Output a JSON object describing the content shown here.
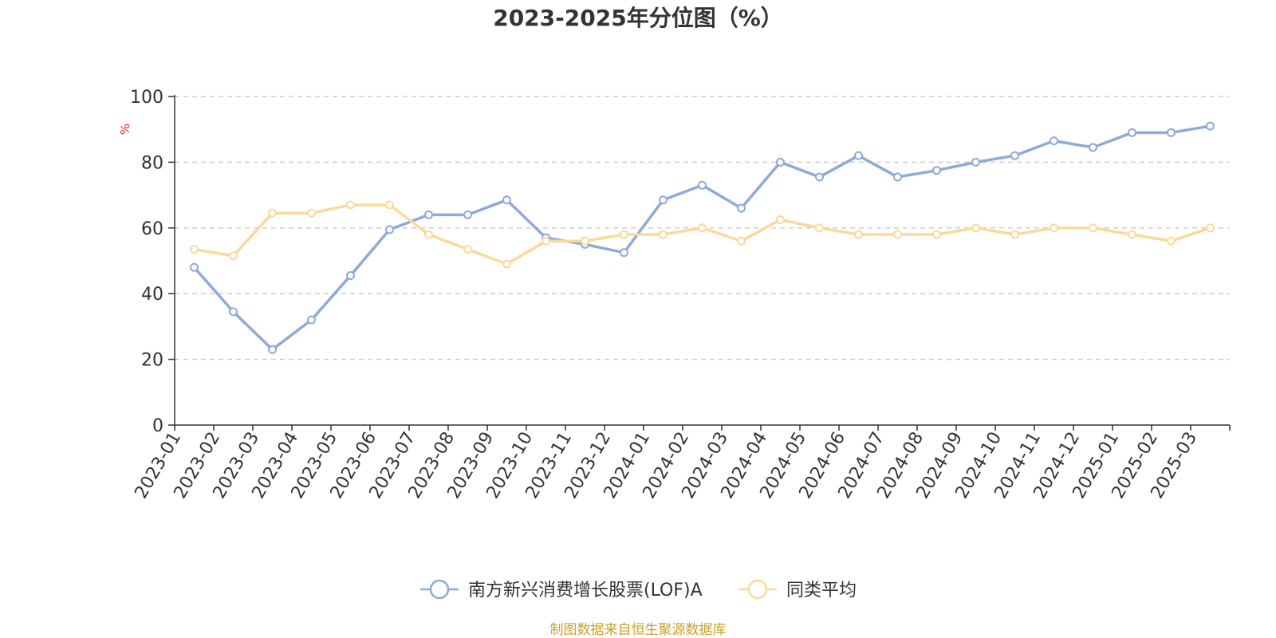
{
  "chart_data": {
    "type": "line",
    "title": "2023-2025年分位图（%）",
    "ylabel": "%",
    "xlabel": "",
    "ylim": [
      0,
      100
    ],
    "yticks": [
      0,
      20,
      40,
      60,
      80,
      100
    ],
    "grid": true,
    "legend_position": "bottom-center",
    "categories": [
      "2023-01",
      "2023-02",
      "2023-03",
      "2023-04",
      "2023-05",
      "2023-06",
      "2023-07",
      "2023-08",
      "2023-09",
      "2023-10",
      "2023-11",
      "2023-12",
      "2024-01",
      "2024-02",
      "2024-03",
      "2024-04",
      "2024-05",
      "2024-06",
      "2024-07",
      "2024-08",
      "2024-09",
      "2024-10",
      "2024-11",
      "2024-12",
      "2025-01",
      "2025-02",
      "2025-03"
    ],
    "series": [
      {
        "name": "南方新兴消费增长股票(LOF)A",
        "color": "#8eaad8",
        "values": [
          48.0,
          34.5,
          23.0,
          32.0,
          45.5,
          59.5,
          64.0,
          64.0,
          68.5,
          57.0,
          55.0,
          52.5,
          68.5,
          73.0,
          66.0,
          80.0,
          75.5,
          82.0,
          75.5,
          77.5,
          80.0,
          82.0,
          86.5,
          84.5,
          89.0,
          89.0,
          91.0
        ]
      },
      {
        "name": "同类平均",
        "color": "#fcd99a",
        "values": [
          53.5,
          51.5,
          64.5,
          64.5,
          67.0,
          67.0,
          58.0,
          53.5,
          49.0,
          56.0,
          56.0,
          58.0,
          58.0,
          60.0,
          56.0,
          62.5,
          60.0,
          58.0,
          58.0,
          58.0,
          60.0,
          58.0,
          60.0,
          60.0,
          58.0,
          56.0,
          60.0
        ]
      }
    ],
    "source": "制图数据来自恒生聚源数据库"
  },
  "colors": {
    "axis": "#333333",
    "grid": "#cccccc",
    "unit": "#e02020",
    "source": "#c9a227"
  }
}
